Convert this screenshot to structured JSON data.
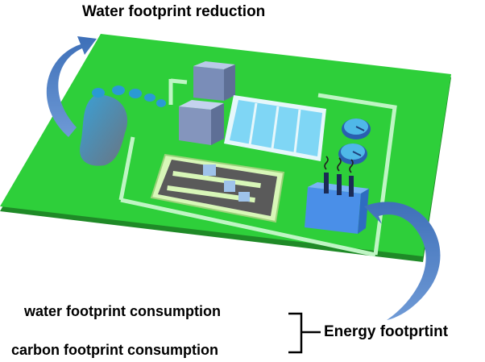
{
  "labels": {
    "title": "Water footprint reduction",
    "water_consumption": "water footprint consumption",
    "carbon_consumption": "carbon footprint consumption",
    "energy": "Energy footprtint"
  },
  "colors": {
    "board": "#2ecf3a",
    "board_side": "#1f8a27",
    "wall": "#bff5c4",
    "arrow": "#4a7cc4",
    "building": "#a9b7d6",
    "pool": "#7fd6f5",
    "energy_block": "#4a8fe8"
  },
  "icons": [
    "footprint-icon",
    "building-icon",
    "pool-icon",
    "clarifier-icon",
    "pipe-maze-icon",
    "chimney-block-icon",
    "curved-arrow-icon"
  ]
}
